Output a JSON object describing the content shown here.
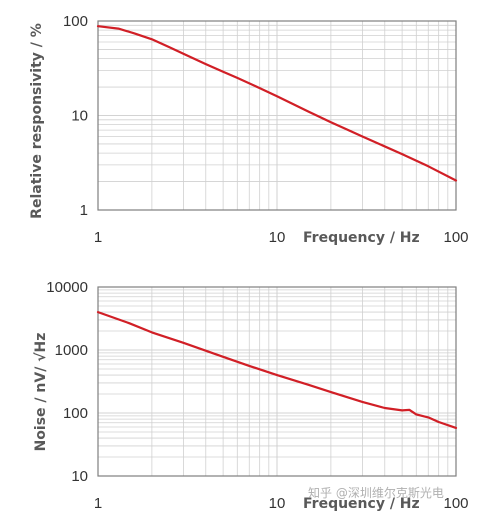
{
  "chart_data": [
    {
      "type": "line",
      "title": "",
      "xlabel": "Frequency / Hz",
      "ylabel": "Relative responsivity / %",
      "x_scale": "log",
      "y_scale": "log",
      "xlim": [
        1,
        100
      ],
      "ylim": [
        1,
        100
      ],
      "x_ticks": [
        "1",
        "10",
        "100"
      ],
      "y_ticks": [
        "100",
        "10",
        "1"
      ],
      "grid": true,
      "line_color": "#d11f26",
      "series": [
        {
          "x": [
            1,
            1.3,
            1.6,
            2,
            2.5,
            3,
            4,
            5,
            6,
            8,
            10,
            15,
            20,
            30,
            50,
            70,
            100
          ],
          "values": [
            88,
            83,
            74,
            64,
            53,
            45,
            35,
            29,
            25,
            19.5,
            16,
            11,
            8.5,
            6.0,
            3.9,
            2.9,
            2.05
          ]
        }
      ]
    },
    {
      "type": "line",
      "title": "",
      "xlabel": "Frequency / Hz",
      "ylabel": "Noise / nV/ √Hz",
      "x_scale": "log",
      "y_scale": "log",
      "xlim": [
        1,
        100
      ],
      "ylim": [
        10,
        10000
      ],
      "x_ticks": [
        "1",
        "10",
        "100"
      ],
      "y_ticks": [
        "10000",
        "1000",
        "100",
        "10"
      ],
      "grid": true,
      "line_color": "#d11f26",
      "series": [
        {
          "x": [
            1,
            1.5,
            2,
            3,
            5,
            7,
            10,
            15,
            20,
            30,
            40,
            50,
            55,
            60,
            70,
            80,
            100
          ],
          "values": [
            4000,
            2650,
            1900,
            1300,
            780,
            560,
            400,
            280,
            215,
            150,
            120,
            110,
            112,
            95,
            85,
            72,
            58
          ]
        }
      ]
    }
  ],
  "watermark": "知乎 @深圳维尔克斯光电"
}
